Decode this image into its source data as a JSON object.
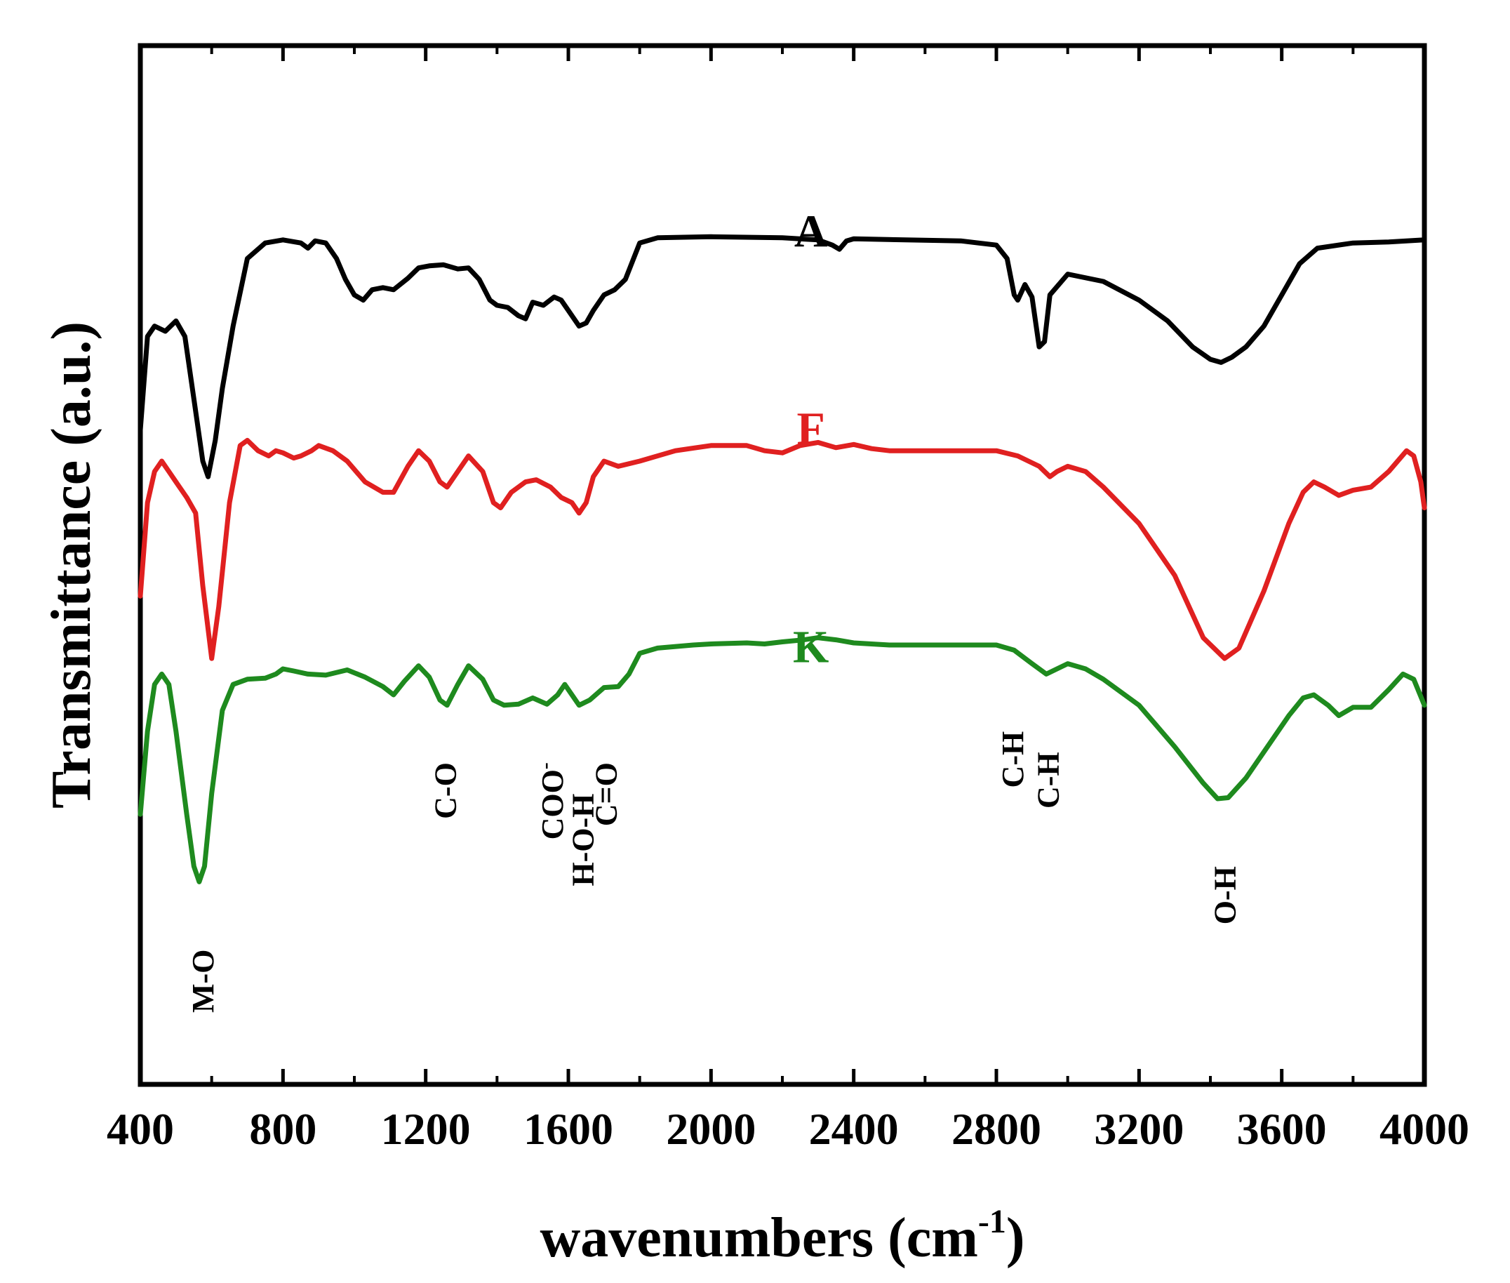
{
  "chart_data": {
    "type": "line",
    "xlabel": "wavenumbers (cm",
    "xlabel_sup": "-1",
    "xlabel_close": ")",
    "ylabel": "Transmittance (a.u.)",
    "xlim": [
      400,
      4000
    ],
    "xticks": [
      400,
      800,
      1200,
      1600,
      2000,
      2400,
      2800,
      3200,
      3600,
      4000
    ],
    "ylim": [
      0,
      100
    ],
    "grid": false,
    "legend": "none",
    "series": [
      {
        "name": "A",
        "color": "#000000",
        "label_at": [
          2280,
          82
        ],
        "points": [
          [
            400,
            63
          ],
          [
            420,
            72
          ],
          [
            440,
            73
          ],
          [
            470,
            72.5
          ],
          [
            500,
            73.5
          ],
          [
            525,
            72
          ],
          [
            550,
            66
          ],
          [
            575,
            60
          ],
          [
            590,
            58.5
          ],
          [
            610,
            62
          ],
          [
            630,
            67
          ],
          [
            660,
            73
          ],
          [
            700,
            79.5
          ],
          [
            750,
            81
          ],
          [
            800,
            81.3
          ],
          [
            850,
            81
          ],
          [
            870,
            80.5
          ],
          [
            890,
            81.2
          ],
          [
            920,
            81
          ],
          [
            950,
            79.5
          ],
          [
            975,
            77.5
          ],
          [
            1000,
            76
          ],
          [
            1025,
            75.5
          ],
          [
            1050,
            76.5
          ],
          [
            1080,
            76.7
          ],
          [
            1110,
            76.5
          ],
          [
            1150,
            77.6
          ],
          [
            1180,
            78.6
          ],
          [
            1210,
            78.8
          ],
          [
            1250,
            78.9
          ],
          [
            1290,
            78.5
          ],
          [
            1320,
            78.6
          ],
          [
            1350,
            77.5
          ],
          [
            1380,
            75.5
          ],
          [
            1400,
            75
          ],
          [
            1430,
            74.8
          ],
          [
            1460,
            74
          ],
          [
            1480,
            73.7
          ],
          [
            1500,
            75.3
          ],
          [
            1530,
            75
          ],
          [
            1560,
            75.8
          ],
          [
            1580,
            75.5
          ],
          [
            1600,
            74.5
          ],
          [
            1630,
            73
          ],
          [
            1650,
            73.3
          ],
          [
            1670,
            74.5
          ],
          [
            1700,
            76
          ],
          [
            1730,
            76.5
          ],
          [
            1760,
            77.5
          ],
          [
            1800,
            81
          ],
          [
            1850,
            81.5
          ],
          [
            2000,
            81.6
          ],
          [
            2200,
            81.5
          ],
          [
            2300,
            81.3
          ],
          [
            2340,
            80.8
          ],
          [
            2360,
            80.4
          ],
          [
            2380,
            81.2
          ],
          [
            2400,
            81.4
          ],
          [
            2700,
            81.2
          ],
          [
            2800,
            80.8
          ],
          [
            2830,
            79.5
          ],
          [
            2850,
            76
          ],
          [
            2860,
            75.5
          ],
          [
            2880,
            77
          ],
          [
            2900,
            75.8
          ],
          [
            2920,
            71
          ],
          [
            2935,
            71.5
          ],
          [
            2950,
            76
          ],
          [
            3000,
            78
          ],
          [
            3100,
            77.3
          ],
          [
            3200,
            75.5
          ],
          [
            3280,
            73.5
          ],
          [
            3350,
            71
          ],
          [
            3400,
            69.8
          ],
          [
            3430,
            69.5
          ],
          [
            3460,
            70
          ],
          [
            3500,
            71
          ],
          [
            3550,
            73
          ],
          [
            3600,
            76
          ],
          [
            3650,
            79
          ],
          [
            3700,
            80.5
          ],
          [
            3800,
            81
          ],
          [
            3900,
            81.1
          ],
          [
            4000,
            81.3
          ]
        ]
      },
      {
        "name": "F",
        "color": "#e02020",
        "label_at": [
          2280,
          63
        ],
        "points": [
          [
            400,
            47
          ],
          [
            420,
            56
          ],
          [
            440,
            59
          ],
          [
            460,
            60
          ],
          [
            480,
            59
          ],
          [
            500,
            58
          ],
          [
            530,
            56.5
          ],
          [
            555,
            55
          ],
          [
            575,
            48
          ],
          [
            600,
            41
          ],
          [
            620,
            46
          ],
          [
            650,
            56
          ],
          [
            680,
            61.5
          ],
          [
            700,
            62
          ],
          [
            730,
            61
          ],
          [
            760,
            60.5
          ],
          [
            780,
            61
          ],
          [
            800,
            60.8
          ],
          [
            830,
            60.3
          ],
          [
            850,
            60.5
          ],
          [
            880,
            61
          ],
          [
            900,
            61.5
          ],
          [
            940,
            61
          ],
          [
            980,
            60
          ],
          [
            1030,
            58
          ],
          [
            1080,
            57
          ],
          [
            1110,
            57
          ],
          [
            1150,
            59.5
          ],
          [
            1180,
            61
          ],
          [
            1210,
            60
          ],
          [
            1240,
            58
          ],
          [
            1260,
            57.5
          ],
          [
            1290,
            59
          ],
          [
            1320,
            60.5
          ],
          [
            1360,
            59
          ],
          [
            1390,
            56
          ],
          [
            1410,
            55.5
          ],
          [
            1440,
            57
          ],
          [
            1480,
            58
          ],
          [
            1510,
            58.2
          ],
          [
            1550,
            57.5
          ],
          [
            1580,
            56.5
          ],
          [
            1610,
            56
          ],
          [
            1630,
            55
          ],
          [
            1650,
            56
          ],
          [
            1670,
            58.5
          ],
          [
            1700,
            60
          ],
          [
            1740,
            59.5
          ],
          [
            1800,
            60
          ],
          [
            1900,
            61
          ],
          [
            2000,
            61.5
          ],
          [
            2100,
            61.5
          ],
          [
            2150,
            61
          ],
          [
            2200,
            60.8
          ],
          [
            2250,
            61.5
          ],
          [
            2300,
            61.8
          ],
          [
            2350,
            61.3
          ],
          [
            2400,
            61.6
          ],
          [
            2450,
            61.2
          ],
          [
            2500,
            61
          ],
          [
            2700,
            61
          ],
          [
            2800,
            61
          ],
          [
            2860,
            60.5
          ],
          [
            2920,
            59.5
          ],
          [
            2950,
            58.5
          ],
          [
            2970,
            59
          ],
          [
            3000,
            59.5
          ],
          [
            3050,
            59
          ],
          [
            3100,
            57.5
          ],
          [
            3200,
            54
          ],
          [
            3300,
            49
          ],
          [
            3380,
            43
          ],
          [
            3440,
            41
          ],
          [
            3480,
            42
          ],
          [
            3550,
            47.5
          ],
          [
            3620,
            54
          ],
          [
            3660,
            57
          ],
          [
            3690,
            58
          ],
          [
            3720,
            57.5
          ],
          [
            3760,
            56.7
          ],
          [
            3800,
            57.2
          ],
          [
            3850,
            57.5
          ],
          [
            3900,
            59
          ],
          [
            3950,
            61
          ],
          [
            3970,
            60.5
          ],
          [
            3990,
            58
          ],
          [
            4000,
            55.5
          ]
        ]
      },
      {
        "name": "K",
        "color": "#1e8a1e",
        "label_at": [
          2280,
          42
        ],
        "points": [
          [
            400,
            26
          ],
          [
            420,
            34
          ],
          [
            440,
            38.5
          ],
          [
            460,
            39.5
          ],
          [
            480,
            38.5
          ],
          [
            500,
            34
          ],
          [
            530,
            26
          ],
          [
            550,
            21
          ],
          [
            565,
            19.5
          ],
          [
            580,
            21
          ],
          [
            600,
            28
          ],
          [
            630,
            36
          ],
          [
            660,
            38.5
          ],
          [
            700,
            39
          ],
          [
            750,
            39.1
          ],
          [
            780,
            39.5
          ],
          [
            800,
            40
          ],
          [
            830,
            39.8
          ],
          [
            870,
            39.5
          ],
          [
            920,
            39.4
          ],
          [
            980,
            39.9
          ],
          [
            1030,
            39.2
          ],
          [
            1080,
            38.3
          ],
          [
            1110,
            37.5
          ],
          [
            1140,
            38.8
          ],
          [
            1180,
            40.3
          ],
          [
            1210,
            39.2
          ],
          [
            1240,
            37
          ],
          [
            1260,
            36.5
          ],
          [
            1290,
            38.5
          ],
          [
            1320,
            40.3
          ],
          [
            1360,
            39
          ],
          [
            1390,
            37
          ],
          [
            1420,
            36.5
          ],
          [
            1460,
            36.6
          ],
          [
            1500,
            37.2
          ],
          [
            1540,
            36.6
          ],
          [
            1570,
            37.5
          ],
          [
            1590,
            38.5
          ],
          [
            1610,
            37.5
          ],
          [
            1630,
            36.5
          ],
          [
            1660,
            37
          ],
          [
            1700,
            38.2
          ],
          [
            1740,
            38.3
          ],
          [
            1770,
            39.5
          ],
          [
            1800,
            41.5
          ],
          [
            1850,
            42
          ],
          [
            1950,
            42.3
          ],
          [
            2000,
            42.4
          ],
          [
            2100,
            42.5
          ],
          [
            2150,
            42.4
          ],
          [
            2200,
            42.6
          ],
          [
            2260,
            42.8
          ],
          [
            2300,
            43
          ],
          [
            2350,
            42.8
          ],
          [
            2400,
            42.5
          ],
          [
            2500,
            42.3
          ],
          [
            2600,
            42.3
          ],
          [
            2700,
            42.3
          ],
          [
            2800,
            42.3
          ],
          [
            2850,
            41.8
          ],
          [
            2900,
            40.5
          ],
          [
            2940,
            39.5
          ],
          [
            2970,
            40
          ],
          [
            3000,
            40.5
          ],
          [
            3050,
            40
          ],
          [
            3100,
            39
          ],
          [
            3200,
            36.5
          ],
          [
            3300,
            32.5
          ],
          [
            3380,
            29
          ],
          [
            3420,
            27.5
          ],
          [
            3450,
            27.6
          ],
          [
            3500,
            29.5
          ],
          [
            3560,
            32.5
          ],
          [
            3620,
            35.5
          ],
          [
            3660,
            37.2
          ],
          [
            3690,
            37.5
          ],
          [
            3730,
            36.5
          ],
          [
            3760,
            35.5
          ],
          [
            3800,
            36.3
          ],
          [
            3850,
            36.3
          ],
          [
            3900,
            38
          ],
          [
            3940,
            39.5
          ],
          [
            3970,
            39
          ],
          [
            4000,
            36.5
          ]
        ]
      }
    ],
    "annotations": [
      {
        "text": "M-O",
        "x": 575,
        "y": 13
      },
      {
        "text": "C-O",
        "x": 1255,
        "y": 31
      },
      {
        "text": "COO",
        "sup": "-",
        "x": 1555,
        "y": 31
      },
      {
        "text": "H-O-H",
        "x": 1640,
        "y": 28
      },
      {
        "text": "C=O",
        "x": 1705,
        "y": 31
      },
      {
        "text": "C-H",
        "x": 2845,
        "y": 34
      },
      {
        "text": "C-H",
        "x": 2945,
        "y": 32
      },
      {
        "text": "O-H",
        "x": 3440,
        "y": 21
      }
    ]
  }
}
